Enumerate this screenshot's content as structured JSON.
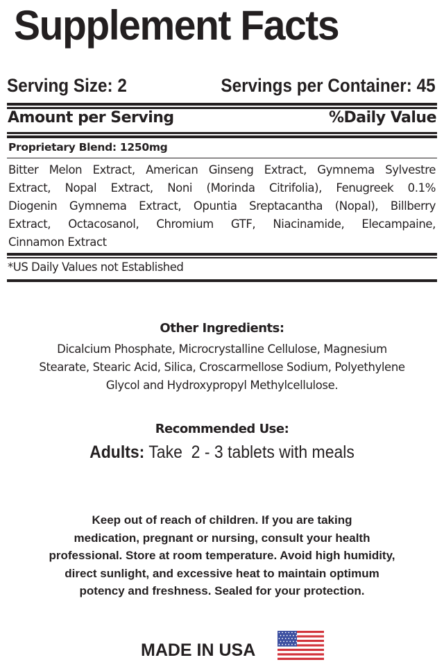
{
  "title": "Supplement Facts",
  "serving_size": "Serving Size: 2",
  "servings_per_container": "Servings per Container: 45",
  "amount_per_serving": "Amount per Serving",
  "daily_value": "%Daily Value",
  "proprietary_blend": "Proprietary Blend:  1250mg",
  "blend_ingredients": [
    "Bitter Melon Extract, American Ginseng Extract, Gymnema Sylvestre",
    "Extract, Nopal Extract, Noni (Morinda Citrifolia), Fenugreek 0.1%",
    "Diogenin Gymnema Extract, Opuntia Sreptacantha (Nopal), Billberry",
    "Extract, Octacosanol, Chromium GTF, Niacinamide, Elecampaine,",
    "Cinnamon Extract"
  ],
  "footnote": "*US Daily Values not Established",
  "other_ingredients": {
    "heading": "Other Ingredients:",
    "lines": [
      "Dicalcium Phosphate, Microcrystalline Cellulose, Magnesium",
      "Stearate, Stearic Acid, Silica, Croscarmellose Sodium, Polyethylene",
      "Glycol and Hydroxypropyl Methylcellulose."
    ]
  },
  "recommended_use": {
    "heading": "Recommended Use:",
    "label": "Adults:",
    "text": " Take  2 - 3 tablets with meals"
  },
  "warning_lines": [
    "Keep out  of reach of children. If you are taking",
    "medication, pregnant or nursing, consult your health",
    "professional. Store at room temperature. Avoid high humidity,",
    "direct sunlight, and excessive heat to maintain optimum",
    "potency and freshness. Sealed for your protection."
  ],
  "made_in": "MADE IN USA",
  "flag_icon": "us-flag-icon",
  "colors": {
    "text": "#231f20",
    "flag_red": "#d2343c",
    "flag_blue": "#3c4fa0"
  }
}
